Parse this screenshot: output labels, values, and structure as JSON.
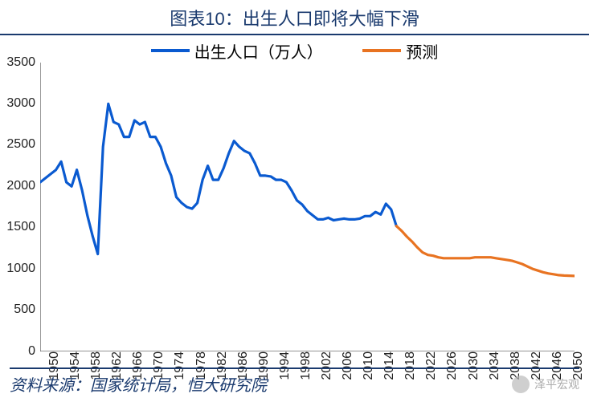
{
  "title": "图表10：出生人口即将大幅下滑",
  "title_color": "#1a3a6e",
  "title_fontsize": 22,
  "legend": {
    "fontsize": 20,
    "items": [
      {
        "label": "出生人口（万人）",
        "color": "#0a5ad0"
      },
      {
        "label": "预测",
        "color": "#e87321"
      }
    ]
  },
  "source_label": "资料来源：国家统计局，恒大研究院",
  "watermark": "泽平宏观",
  "chart": {
    "type": "line",
    "background_color": "#ffffff",
    "axis_color": "#555555",
    "tick_fontsize": 16,
    "line_width": 3.2,
    "xlim": [
      1950,
      2052
    ],
    "ylim": [
      0,
      3500
    ],
    "ytick_step": 500,
    "xtick_step": 4,
    "xticks": [
      1950,
      1954,
      1958,
      1962,
      1966,
      1970,
      1974,
      1978,
      1982,
      1986,
      1990,
      1994,
      1998,
      2002,
      2006,
      2010,
      2014,
      2018,
      2022,
      2026,
      2030,
      2034,
      2038,
      2042,
      2046,
      2050
    ],
    "series": [
      {
        "name": "historical",
        "color": "#0a5ad0",
        "points": [
          [
            1950,
            2050
          ],
          [
            1951,
            2100
          ],
          [
            1952,
            2150
          ],
          [
            1953,
            2200
          ],
          [
            1954,
            2300
          ],
          [
            1955,
            2050
          ],
          [
            1956,
            2000
          ],
          [
            1957,
            2200
          ],
          [
            1958,
            1950
          ],
          [
            1959,
            1650
          ],
          [
            1960,
            1400
          ],
          [
            1961,
            1180
          ],
          [
            1962,
            2480
          ],
          [
            1963,
            3000
          ],
          [
            1964,
            2780
          ],
          [
            1965,
            2750
          ],
          [
            1966,
            2600
          ],
          [
            1967,
            2600
          ],
          [
            1968,
            2800
          ],
          [
            1969,
            2750
          ],
          [
            1970,
            2780
          ],
          [
            1971,
            2600
          ],
          [
            1972,
            2600
          ],
          [
            1973,
            2480
          ],
          [
            1974,
            2280
          ],
          [
            1975,
            2130
          ],
          [
            1976,
            1870
          ],
          [
            1977,
            1800
          ],
          [
            1978,
            1750
          ],
          [
            1979,
            1730
          ],
          [
            1980,
            1800
          ],
          [
            1981,
            2080
          ],
          [
            1982,
            2250
          ],
          [
            1983,
            2080
          ],
          [
            1984,
            2080
          ],
          [
            1985,
            2220
          ],
          [
            1986,
            2400
          ],
          [
            1987,
            2550
          ],
          [
            1988,
            2480
          ],
          [
            1989,
            2430
          ],
          [
            1990,
            2400
          ],
          [
            1991,
            2280
          ],
          [
            1992,
            2130
          ],
          [
            1993,
            2130
          ],
          [
            1994,
            2120
          ],
          [
            1995,
            2080
          ],
          [
            1996,
            2080
          ],
          [
            1997,
            2050
          ],
          [
            1998,
            1950
          ],
          [
            1999,
            1830
          ],
          [
            2000,
            1780
          ],
          [
            2001,
            1700
          ],
          [
            2002,
            1650
          ],
          [
            2003,
            1600
          ],
          [
            2004,
            1600
          ],
          [
            2005,
            1620
          ],
          [
            2006,
            1590
          ],
          [
            2007,
            1600
          ],
          [
            2008,
            1610
          ],
          [
            2009,
            1600
          ],
          [
            2010,
            1600
          ],
          [
            2011,
            1610
          ],
          [
            2012,
            1640
          ],
          [
            2013,
            1640
          ],
          [
            2014,
            1690
          ],
          [
            2015,
            1660
          ],
          [
            2016,
            1790
          ],
          [
            2017,
            1720
          ],
          [
            2018,
            1520
          ]
        ]
      },
      {
        "name": "forecast",
        "color": "#e87321",
        "points": [
          [
            2018,
            1520
          ],
          [
            2019,
            1460
          ],
          [
            2020,
            1390
          ],
          [
            2021,
            1330
          ],
          [
            2022,
            1260
          ],
          [
            2023,
            1200
          ],
          [
            2024,
            1170
          ],
          [
            2025,
            1160
          ],
          [
            2026,
            1140
          ],
          [
            2027,
            1130
          ],
          [
            2028,
            1130
          ],
          [
            2029,
            1130
          ],
          [
            2030,
            1130
          ],
          [
            2031,
            1130
          ],
          [
            2032,
            1130
          ],
          [
            2033,
            1140
          ],
          [
            2034,
            1140
          ],
          [
            2035,
            1140
          ],
          [
            2036,
            1140
          ],
          [
            2037,
            1130
          ],
          [
            2038,
            1120
          ],
          [
            2039,
            1110
          ],
          [
            2040,
            1100
          ],
          [
            2041,
            1080
          ],
          [
            2042,
            1060
          ],
          [
            2043,
            1030
          ],
          [
            2044,
            1000
          ],
          [
            2045,
            980
          ],
          [
            2046,
            960
          ],
          [
            2047,
            945
          ],
          [
            2048,
            935
          ],
          [
            2049,
            925
          ],
          [
            2050,
            920
          ],
          [
            2051,
            918
          ],
          [
            2052,
            915
          ]
        ]
      }
    ]
  }
}
